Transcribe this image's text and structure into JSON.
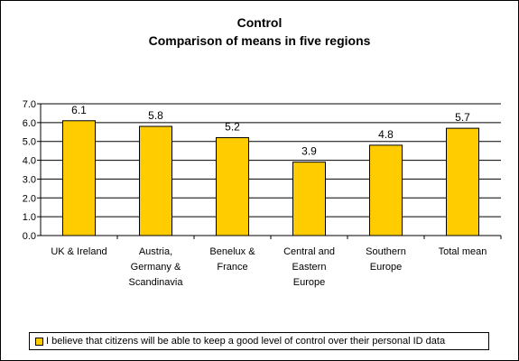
{
  "chart_data": {
    "type": "bar",
    "title": "Control",
    "subtitle": "Comparison of means in five regions",
    "categories": [
      [
        "UK & Ireland"
      ],
      [
        "Austria,",
        "Germany &",
        "Scandinavia"
      ],
      [
        "Benelux &",
        "France"
      ],
      [
        "Central and",
        "Eastern",
        "Europe"
      ],
      [
        "Southern",
        "Europe"
      ],
      [
        "Total mean"
      ]
    ],
    "series": [
      {
        "name": "I believe that citizens will be able to keep a good level of control over their personal ID data",
        "values": [
          6.1,
          5.8,
          5.2,
          3.9,
          4.8,
          5.7
        ],
        "labels": [
          "6.1",
          "5.8",
          "5.2",
          "3.9",
          "4.8",
          "5.7"
        ]
      }
    ],
    "ylim": [
      0,
      7
    ],
    "yticks": [
      "0.0",
      "1.0",
      "2.0",
      "3.0",
      "4.0",
      "5.0",
      "6.0",
      "7.0"
    ],
    "grid": true,
    "legend": "bottom",
    "colors": {
      "bar": "#FFCC00",
      "bar_border": "#000000",
      "grid": "#000000"
    }
  }
}
